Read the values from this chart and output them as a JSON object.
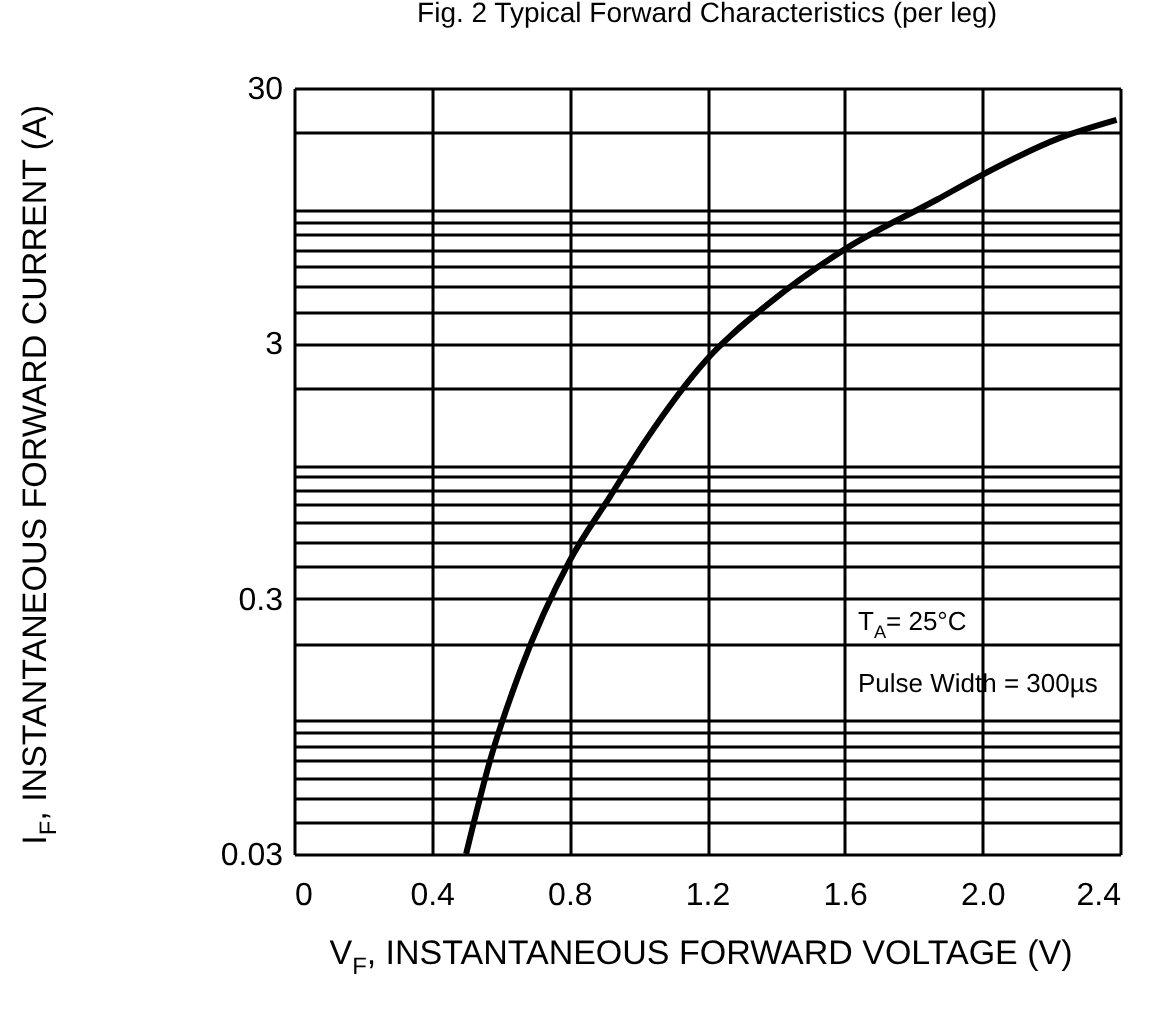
{
  "chart_data": {
    "type": "line",
    "title": "Fig. 2 Typical Forward Characteristics (per leg)",
    "xlabel": "V$_{F}$, INSTANTANEOUS FORWARD VOLTAGE (V)",
    "ylabel": "I$_{F}$, INSTANTANEOUS FORWARD CURRENT (A)",
    "series": [
      {
        "color": "#000000",
        "x": [
          0.5,
          0.57,
          0.66,
          0.8,
          0.92,
          1.02,
          1.2,
          1.38,
          1.6,
          1.87,
          1.99,
          2.22,
          2.39
        ],
        "values": [
          0.03,
          0.07,
          0.16,
          0.42,
          0.76,
          1.24,
          2.6,
          4.3,
          7.0,
          11,
          13.5,
          19,
          22.5
        ]
      }
    ],
    "xlim": [
      0,
      2.4
    ],
    "xticks": [
      0,
      0.4,
      0.8,
      1.2,
      1.6,
      {
        "value": 2.0,
        "label": "2.0"
      },
      2.4
    ],
    "ylim": [
      0.03,
      30
    ],
    "yticks": [
      0.03,
      {
        "value": 0.04,
        "label": null
      },
      {
        "value": 0.05,
        "label": null
      },
      {
        "value": 0.06,
        "label": null
      },
      {
        "value": 0.07,
        "label": null
      },
      {
        "value": 0.08,
        "label": null
      },
      {
        "value": 0.09,
        "label": null
      },
      {
        "value": 0.1,
        "label": null
      },
      {
        "value": 0.2,
        "label": null
      },
      0.3,
      {
        "value": 0.4,
        "label": null
      },
      {
        "value": 0.5,
        "label": null
      },
      {
        "value": 0.6,
        "label": null
      },
      {
        "value": 0.7,
        "label": null
      },
      {
        "value": 0.8,
        "label": null
      },
      {
        "value": 0.9,
        "label": null
      },
      {
        "value": 1,
        "label": null
      },
      {
        "value": 2,
        "label": null
      },
      3,
      {
        "value": 4,
        "label": null
      },
      {
        "value": 5,
        "label": null
      },
      {
        "value": 6,
        "label": null
      },
      {
        "value": 7,
        "label": null
      },
      {
        "value": 8,
        "label": null
      },
      {
        "value": 9,
        "label": null
      },
      {
        "value": 10,
        "label": null
      },
      {
        "value": 20,
        "label": null
      },
      30
    ],
    "log": "y",
    "grid": true,
    "marker": "none",
    "line_style": "solid",
    "annotations": [
      "T$_{A}$= 25°C",
      "Pulse Width = 300µs"
    ]
  }
}
